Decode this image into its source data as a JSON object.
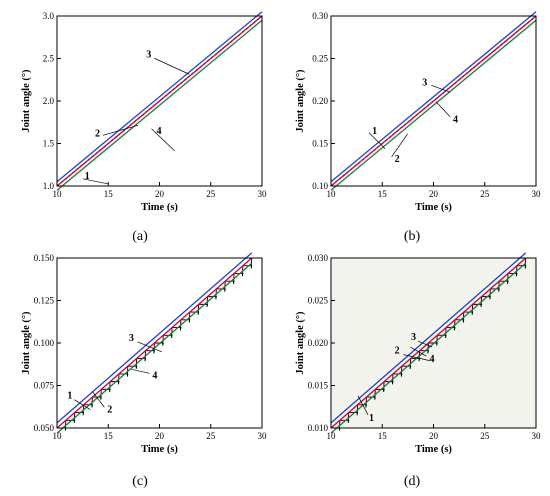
{
  "chart_data": [
    {
      "type": "line",
      "caption": "(a)",
      "xlabel": "Time (s)",
      "ylabel": "Joint angle (°)",
      "xlim": [
        10,
        30
      ],
      "ylim": [
        1.0,
        3.0
      ],
      "xticks": [
        "10",
        "15",
        "20",
        "25",
        "30"
      ],
      "yticks": [
        "1.0",
        "1.5",
        "2.0",
        "2.5",
        "3.0"
      ],
      "series": [
        {
          "label_num": "1",
          "color": "#000000",
          "style": "dashed",
          "x": [
            10,
            30
          ],
          "y": [
            1.0,
            3.0
          ]
        },
        {
          "label_num": "2",
          "color": "#d4002a",
          "style": "solid",
          "x": [
            10,
            30
          ],
          "y": [
            1.0,
            3.0
          ]
        },
        {
          "label_num": "3",
          "color": "#1f3fd6",
          "style": "solid",
          "x": [
            10,
            30
          ],
          "y": [
            1.05,
            3.05
          ]
        },
        {
          "label_num": "4",
          "color": "#1b7a3d",
          "style": "solid",
          "x": [
            10,
            30
          ],
          "y": [
            0.95,
            2.95
          ]
        }
      ],
      "annotations": [
        {
          "text": "1",
          "x": 13.0,
          "y": 1.12
        },
        {
          "text": "2",
          "x": 14.0,
          "y": 1.62
        },
        {
          "text": "3",
          "x": 19.0,
          "y": 2.55
        },
        {
          "text": "4",
          "x": 20.0,
          "y": 1.65
        }
      ]
    },
    {
      "type": "line",
      "caption": "(b)",
      "xlabel": "Time (s)",
      "ylabel": "Joint angle (°)",
      "xlim": [
        10,
        30
      ],
      "ylim": [
        0.1,
        0.3
      ],
      "xticks": [
        "10",
        "15",
        "20",
        "25",
        "30"
      ],
      "yticks": [
        "0.10",
        "0.15",
        "0.20",
        "0.25",
        "0.30"
      ],
      "series": [
        {
          "label_num": "1",
          "color": "#000000",
          "style": "dashed",
          "x": [
            10,
            30
          ],
          "y": [
            0.1,
            0.3
          ]
        },
        {
          "label_num": "2",
          "color": "#d4002a",
          "style": "solid",
          "x": [
            10,
            30
          ],
          "y": [
            0.1,
            0.3
          ]
        },
        {
          "label_num": "3",
          "color": "#1f3fd6",
          "style": "solid",
          "x": [
            10,
            30
          ],
          "y": [
            0.105,
            0.305
          ]
        },
        {
          "label_num": "4",
          "color": "#1b7a3d",
          "style": "solid",
          "x": [
            10,
            30
          ],
          "y": [
            0.095,
            0.295
          ]
        }
      ],
      "annotations": [
        {
          "text": "1",
          "x": 14.3,
          "y": 0.165
        },
        {
          "text": "2",
          "x": 16.5,
          "y": 0.132
        },
        {
          "text": "3",
          "x": 19.2,
          "y": 0.222
        },
        {
          "text": "4",
          "x": 22.2,
          "y": 0.178
        }
      ]
    },
    {
      "type": "line",
      "caption": "(c)",
      "xlabel": "Time (s)",
      "ylabel": "Joint angle (°)",
      "xlim": [
        10,
        30
      ],
      "ylim": [
        0.05,
        0.15
      ],
      "xticks": [
        "10",
        "15",
        "20",
        "25",
        "30"
      ],
      "yticks": [
        "0.050",
        "0.075",
        "0.100",
        "0.125",
        "0.150"
      ],
      "series": [
        {
          "label_num": "1",
          "color": "#000000",
          "style": "staircase",
          "x": [
            10,
            29
          ],
          "y": [
            0.05,
            0.15
          ]
        },
        {
          "label_num": "2",
          "color": "#d4002a",
          "style": "solid",
          "x": [
            10,
            29
          ],
          "y": [
            0.05,
            0.15
          ]
        },
        {
          "label_num": "3",
          "color": "#1f3fd6",
          "style": "solid",
          "x": [
            10,
            29
          ],
          "y": [
            0.053,
            0.153
          ]
        },
        {
          "label_num": "4",
          "color": "#1b7a3d",
          "style": "solid",
          "x": [
            10,
            29
          ],
          "y": [
            0.047,
            0.147
          ]
        }
      ],
      "annotations": [
        {
          "text": "1",
          "x": 11.3,
          "y": 0.069
        },
        {
          "text": "2",
          "x": 15.2,
          "y": 0.061
        },
        {
          "text": "3",
          "x": 17.3,
          "y": 0.103
        },
        {
          "text": "4",
          "x": 19.6,
          "y": 0.081
        }
      ]
    },
    {
      "type": "line",
      "caption": "(d)",
      "xlabel": "Time (s)",
      "ylabel": "Joint angle (°)",
      "xlim": [
        10,
        30
      ],
      "ylim": [
        0.01,
        0.03
      ],
      "xticks": [
        "10",
        "15",
        "20",
        "25",
        "30"
      ],
      "yticks": [
        "0.010",
        "0.015",
        "0.020",
        "0.025",
        "0.030"
      ],
      "series": [
        {
          "label_num": "1",
          "color": "#000000",
          "style": "staircase",
          "x": [
            10,
            29
          ],
          "y": [
            0.01,
            0.03
          ]
        },
        {
          "label_num": "2",
          "color": "#d4002a",
          "style": "solid",
          "x": [
            10,
            29
          ],
          "y": [
            0.01,
            0.03
          ]
        },
        {
          "label_num": "3",
          "color": "#1f3fd6",
          "style": "solid",
          "x": [
            10,
            29
          ],
          "y": [
            0.0106,
            0.0306
          ]
        },
        {
          "label_num": "4",
          "color": "#1b7a3d",
          "style": "solid",
          "x": [
            10,
            29
          ],
          "y": [
            0.0094,
            0.0294
          ]
        }
      ],
      "annotations": [
        {
          "text": "1",
          "x": 14.0,
          "y": 0.0112
        },
        {
          "text": "2",
          "x": 16.5,
          "y": 0.0191
        },
        {
          "text": "3",
          "x": 18.1,
          "y": 0.0207
        },
        {
          "text": "4",
          "x": 19.9,
          "y": 0.0181
        }
      ]
    }
  ]
}
